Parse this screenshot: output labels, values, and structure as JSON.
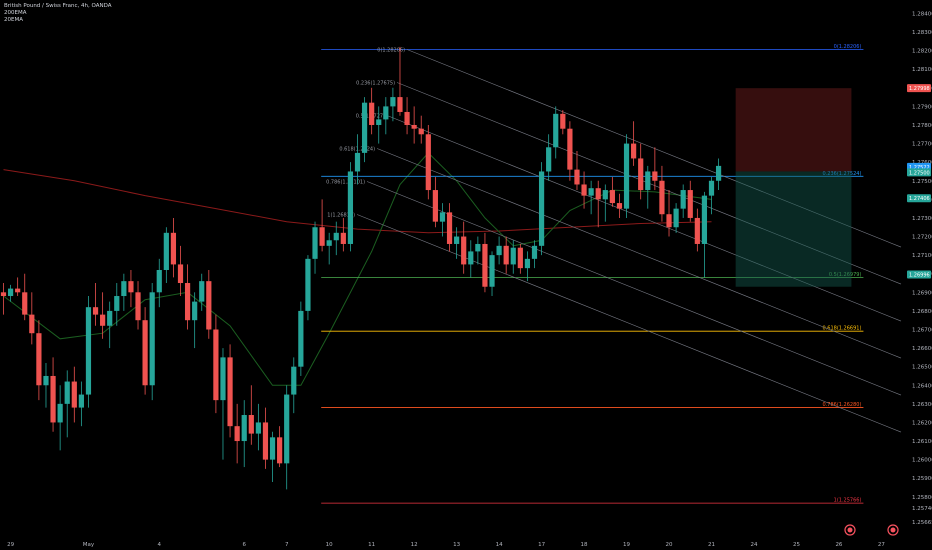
{
  "header": {
    "symbol": "British Pound / Swiss Franc, 4h, OANDA",
    "indicator1": "200EMA",
    "indicator2": "20EMA"
  },
  "colors": {
    "bull": "#26a69a",
    "bear": "#ef5350",
    "ema200": "#8b1a1a",
    "ema20": "#1b5e20",
    "channel": "#787b86",
    "stop_zone": "rgba(120,30,30,0.45)",
    "target_zone": "rgba(20,90,80,0.45)"
  },
  "chart_data": {
    "type": "candlestick",
    "y_axis": {
      "range": [
        1.256,
        1.2844
      ],
      "ticks": [
        "1.28400",
        "1.28300",
        "1.28200",
        "1.28100",
        "1.28000",
        "1.27900",
        "1.27800",
        "1.27700",
        "1.27600",
        "1.27500",
        "1.27400",
        "1.27300",
        "1.27200",
        "1.27100",
        "1.27000",
        "1.26900",
        "1.26800",
        "1.26700",
        "1.26600",
        "1.26500",
        "1.26400",
        "1.26300",
        "1.26200",
        "1.26100",
        "1.26000",
        "1.25900",
        "1.25800",
        "1.25740",
        "1.25665"
      ]
    },
    "x_axis": {
      "labels": [
        {
          "text": "29",
          "bar": 1
        },
        {
          "text": "May",
          "bar": 12
        },
        {
          "text": "4",
          "bar": 22
        },
        {
          "text": "6",
          "bar": 34
        },
        {
          "text": "7",
          "bar": 40
        },
        {
          "text": "10",
          "bar": 46
        },
        {
          "text": "11",
          "bar": 52
        },
        {
          "text": "12",
          "bar": 58
        },
        {
          "text": "13",
          "bar": 64
        },
        {
          "text": "14",
          "bar": 70
        },
        {
          "text": "17",
          "bar": 76
        },
        {
          "text": "18",
          "bar": 82
        },
        {
          "text": "19",
          "bar": 88
        },
        {
          "text": "20",
          "bar": 94
        },
        {
          "text": "21",
          "bar": 100
        },
        {
          "text": "24",
          "bar": 106
        },
        {
          "text": "25",
          "bar": 112
        },
        {
          "text": "26",
          "bar": 118
        },
        {
          "text": "27",
          "bar": 124
        }
      ]
    },
    "candles": [
      [
        1.269,
        1.2695,
        1.2678,
        1.2688
      ],
      [
        1.2688,
        1.2694,
        1.2685,
        1.2692
      ],
      [
        1.2692,
        1.2698,
        1.2688,
        1.269
      ],
      [
        1.269,
        1.27,
        1.2675,
        1.2678
      ],
      [
        1.2678,
        1.269,
        1.2662,
        1.2668
      ],
      [
        1.2668,
        1.2675,
        1.2632,
        1.264
      ],
      [
        1.264,
        1.2652,
        1.2628,
        1.2645
      ],
      [
        1.2645,
        1.2655,
        1.2615,
        1.262
      ],
      [
        1.262,
        1.264,
        1.2605,
        1.263
      ],
      [
        1.263,
        1.2648,
        1.2612,
        1.2642
      ],
      [
        1.2642,
        1.265,
        1.262,
        1.2628
      ],
      [
        1.2628,
        1.2642,
        1.2618,
        1.2635
      ],
      [
        1.2635,
        1.2688,
        1.2628,
        1.2682
      ],
      [
        1.2682,
        1.2695,
        1.2672,
        1.2678
      ],
      [
        1.2678,
        1.269,
        1.2665,
        1.2672
      ],
      [
        1.2672,
        1.2685,
        1.266,
        1.268
      ],
      [
        1.268,
        1.2695,
        1.2672,
        1.2688
      ],
      [
        1.2688,
        1.27,
        1.268,
        1.2696
      ],
      [
        1.2696,
        1.2702,
        1.2682,
        1.269
      ],
      [
        1.269,
        1.2696,
        1.267,
        1.2675
      ],
      [
        1.2675,
        1.2682,
        1.2635,
        1.264
      ],
      [
        1.264,
        1.2695,
        1.2632,
        1.269
      ],
      [
        1.269,
        1.2708,
        1.2682,
        1.2702
      ],
      [
        1.2702,
        1.2725,
        1.2695,
        1.2722
      ],
      [
        1.2722,
        1.273,
        1.2698,
        1.2705
      ],
      [
        1.2705,
        1.2715,
        1.2688,
        1.2695
      ],
      [
        1.2695,
        1.2705,
        1.267,
        1.2675
      ],
      [
        1.2675,
        1.269,
        1.266,
        1.2685
      ],
      [
        1.2685,
        1.27,
        1.268,
        1.2696
      ],
      [
        1.2696,
        1.2702,
        1.2665,
        1.267
      ],
      [
        1.267,
        1.2678,
        1.2625,
        1.2632
      ],
      [
        1.2632,
        1.266,
        1.26,
        1.2655
      ],
      [
        1.2655,
        1.2662,
        1.2612,
        1.2618
      ],
      [
        1.2618,
        1.263,
        1.2598,
        1.261
      ],
      [
        1.261,
        1.2632,
        1.2596,
        1.2624
      ],
      [
        1.2624,
        1.264,
        1.2608,
        1.2614
      ],
      [
        1.2614,
        1.263,
        1.2605,
        1.262
      ],
      [
        1.262,
        1.2628,
        1.2595,
        1.26
      ],
      [
        1.26,
        1.2615,
        1.2588,
        1.2612
      ],
      [
        1.2612,
        1.2618,
        1.2596,
        1.2598
      ],
      [
        1.2598,
        1.264,
        1.2584,
        1.2635
      ],
      [
        1.2635,
        1.2655,
        1.2625,
        1.265
      ],
      [
        1.265,
        1.2685,
        1.2645,
        1.268
      ],
      [
        1.268,
        1.271,
        1.2675,
        1.2708
      ],
      [
        1.2708,
        1.2728,
        1.27,
        1.2725
      ],
      [
        1.2725,
        1.274,
        1.2712,
        1.2715
      ],
      [
        1.2715,
        1.2722,
        1.2705,
        1.2718
      ],
      [
        1.2718,
        1.2728,
        1.271,
        1.2722
      ],
      [
        1.2722,
        1.273,
        1.2712,
        1.2716
      ],
      [
        1.2716,
        1.276,
        1.2712,
        1.2755
      ],
      [
        1.2755,
        1.2775,
        1.2748,
        1.2765
      ],
      [
        1.2765,
        1.2795,
        1.276,
        1.2792
      ],
      [
        1.2792,
        1.28,
        1.2775,
        1.278
      ],
      [
        1.278,
        1.279,
        1.277,
        1.2783
      ],
      [
        1.2783,
        1.2795,
        1.2775,
        1.279
      ],
      [
        1.279,
        1.28,
        1.2782,
        1.2795
      ],
      [
        1.2795,
        1.2822,
        1.2785,
        1.2787
      ],
      [
        1.2787,
        1.2795,
        1.2775,
        1.278
      ],
      [
        1.278,
        1.279,
        1.277,
        1.2778
      ],
      [
        1.2778,
        1.2785,
        1.277,
        1.2775
      ],
      [
        1.2775,
        1.278,
        1.274,
        1.2745
      ],
      [
        1.2745,
        1.2752,
        1.2725,
        1.2728
      ],
      [
        1.2728,
        1.2738,
        1.272,
        1.2733
      ],
      [
        1.2733,
        1.2738,
        1.2712,
        1.2716
      ],
      [
        1.2716,
        1.2725,
        1.2708,
        1.272
      ],
      [
        1.272,
        1.2728,
        1.27,
        1.2705
      ],
      [
        1.2705,
        1.2718,
        1.2698,
        1.2712
      ],
      [
        1.2712,
        1.272,
        1.2705,
        1.2716
      ],
      [
        1.2716,
        1.2722,
        1.269,
        1.2693
      ],
      [
        1.2693,
        1.2712,
        1.2688,
        1.271
      ],
      [
        1.271,
        1.272,
        1.2705,
        1.2715
      ],
      [
        1.2715,
        1.272,
        1.27,
        1.2705
      ],
      [
        1.2705,
        1.2718,
        1.27,
        1.2714
      ],
      [
        1.2714,
        1.2716,
        1.27,
        1.2703
      ],
      [
        1.2703,
        1.2712,
        1.2696,
        1.2708
      ],
      [
        1.2708,
        1.2718,
        1.2703,
        1.2715
      ],
      [
        1.2715,
        1.276,
        1.271,
        1.2755
      ],
      [
        1.2755,
        1.2775,
        1.275,
        1.2768
      ],
      [
        1.2768,
        1.279,
        1.2762,
        1.2786
      ],
      [
        1.2786,
        1.2788,
        1.2775,
        1.2778
      ],
      [
        1.2778,
        1.2782,
        1.275,
        1.2756
      ],
      [
        1.2756,
        1.2766,
        1.2745,
        1.2748
      ],
      [
        1.2748,
        1.2755,
        1.2735,
        1.2742
      ],
      [
        1.2742,
        1.275,
        1.2732,
        1.2746
      ],
      [
        1.2746,
        1.275,
        1.2725,
        1.274
      ],
      [
        1.274,
        1.2748,
        1.2728,
        1.2745
      ],
      [
        1.2745,
        1.2752,
        1.2736,
        1.2738
      ],
      [
        1.2738,
        1.2743,
        1.273,
        1.2735
      ],
      [
        1.2735,
        1.2775,
        1.273,
        1.277
      ],
      [
        1.277,
        1.2782,
        1.2758,
        1.2762
      ],
      [
        1.2762,
        1.277,
        1.274,
        1.2745
      ],
      [
        1.2745,
        1.2758,
        1.2735,
        1.2755
      ],
      [
        1.2755,
        1.2768,
        1.2745,
        1.275
      ],
      [
        1.275,
        1.2758,
        1.2728,
        1.2732
      ],
      [
        1.2732,
        1.2745,
        1.272,
        1.2725
      ],
      [
        1.2725,
        1.2738,
        1.2722,
        1.2735
      ],
      [
        1.2735,
        1.2748,
        1.273,
        1.2745
      ],
      [
        1.2745,
        1.275,
        1.2728,
        1.273
      ],
      [
        1.273,
        1.2735,
        1.2712,
        1.2716
      ],
      [
        1.2716,
        1.2744,
        1.2698,
        1.2742
      ],
      [
        1.2742,
        1.2752,
        1.2732,
        1.275
      ],
      [
        1.275,
        1.2762,
        1.2745,
        1.2758
      ]
    ],
    "ema200": [
      [
        0,
        1.2756
      ],
      [
        10,
        1.275
      ],
      [
        20,
        1.2742
      ],
      [
        30,
        1.2735
      ],
      [
        40,
        1.2728
      ],
      [
        50,
        1.2724
      ],
      [
        60,
        1.2722
      ],
      [
        70,
        1.2723
      ],
      [
        80,
        1.2725
      ],
      [
        90,
        1.2727
      ],
      [
        100,
        1.2728
      ]
    ],
    "ema20": [
      [
        0,
        1.2688
      ],
      [
        8,
        1.2665
      ],
      [
        14,
        1.2668
      ],
      [
        20,
        1.2686
      ],
      [
        26,
        1.269
      ],
      [
        32,
        1.2672
      ],
      [
        38,
        1.264
      ],
      [
        42,
        1.264
      ],
      [
        46,
        1.2668
      ],
      [
        52,
        1.2712
      ],
      [
        56,
        1.2748
      ],
      [
        60,
        1.2765
      ],
      [
        64,
        1.275
      ],
      [
        68,
        1.273
      ],
      [
        72,
        1.2715
      ],
      [
        76,
        1.2718
      ],
      [
        80,
        1.2734
      ],
      [
        86,
        1.2745
      ],
      [
        92,
        1.2744
      ],
      [
        100,
        1.274
      ]
    ],
    "fibonacci": {
      "anchor_bar": 46,
      "end_bar": 124,
      "levels": [
        {
          "label": "0(1.28206)",
          "price": 1.28206,
          "color": "#2962ff"
        },
        {
          "label": "0.236(1.27524)",
          "price": 1.27524,
          "color": "#2196f3"
        },
        {
          "label": "0.5(1.26979)",
          "price": 1.26979,
          "color": "#4caf50"
        },
        {
          "label": "0.618(1.26691)",
          "price": 1.26691,
          "color": "#ffc107"
        },
        {
          "label": "0.786(1.26280)",
          "price": 1.2628,
          "color": "#ff5722"
        },
        {
          "label": "1(1.25766)",
          "price": 1.25766,
          "color": "#f23645"
        }
      ]
    },
    "fib_channel": {
      "start_bar": 57,
      "levels": [
        {
          "label": "0(1.28206)",
          "offset": 0
        },
        {
          "label": "0.236(1.27675)",
          "offset": 1
        },
        {
          "label": "0.5(1.2727)",
          "offset": 2
        },
        {
          "label": "0.618(1.2724)",
          "offset": 3
        },
        {
          "label": "0.786(1.27101)",
          "offset": 4
        },
        {
          "label": "1(1.26814)",
          "offset": 5
        }
      ]
    },
    "position": {
      "from_bar": 102,
      "to_bar": 124,
      "stop": 1.27998,
      "entry": 1.2755,
      "target": 1.2693
    },
    "price_badges": [
      {
        "text": "1.27998",
        "price": 1.27998,
        "color": "#ef5350"
      },
      {
        "text": "1.27522",
        "price": 1.27575,
        "color": "#2196f3"
      },
      {
        "text": "1.27500",
        "price": 1.27545,
        "color": "#26a69a"
      },
      {
        "text": "1.27406",
        "price": 1.27406,
        "color": "#26a69a"
      },
      {
        "text": "1.26996",
        "price": 1.26996,
        "color": "#26a69a"
      }
    ]
  }
}
